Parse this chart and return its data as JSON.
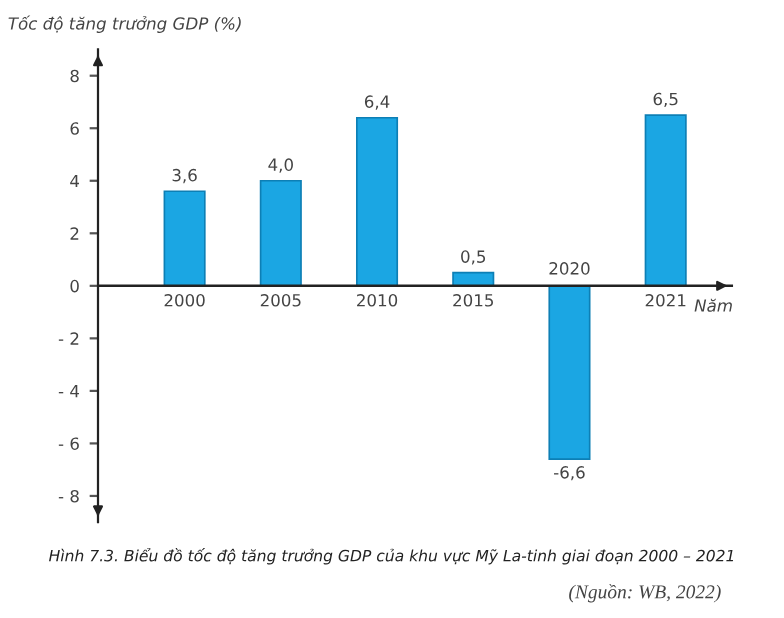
{
  "chart_data": {
    "type": "bar",
    "title": "Hình 7.3. Biểu đồ tốc độ tăng trưởng GDP của khu vực Mỹ La-tinh giai đoạn 2000 – 2021",
    "ylabel": "Tốc độ tăng trưởng GDP (%)",
    "xlabel": "Năm",
    "annotations": [
      "(Nguồn: WB, 2022)"
    ],
    "categories": [
      "2000",
      "2005",
      "2010",
      "2015",
      "2020",
      "2021"
    ],
    "values": [
      3.6,
      4.0,
      6.4,
      0.5,
      -6.6,
      6.5
    ],
    "value_labels": [
      "3,6",
      "4,0",
      "6,4",
      "0,5",
      "-6,6",
      "6,5"
    ],
    "color": "#1ba6e3",
    "ylim": [
      -9,
      9
    ],
    "yticks": [
      {
        "value": -8,
        "label": "- 8"
      },
      {
        "value": -6,
        "label": "- 6"
      },
      {
        "value": -4,
        "label": "- 4"
      },
      {
        "value": -2,
        "label": "- 2"
      },
      0,
      2,
      4,
      6,
      8
    ],
    "grid": false,
    "legend": false
  }
}
